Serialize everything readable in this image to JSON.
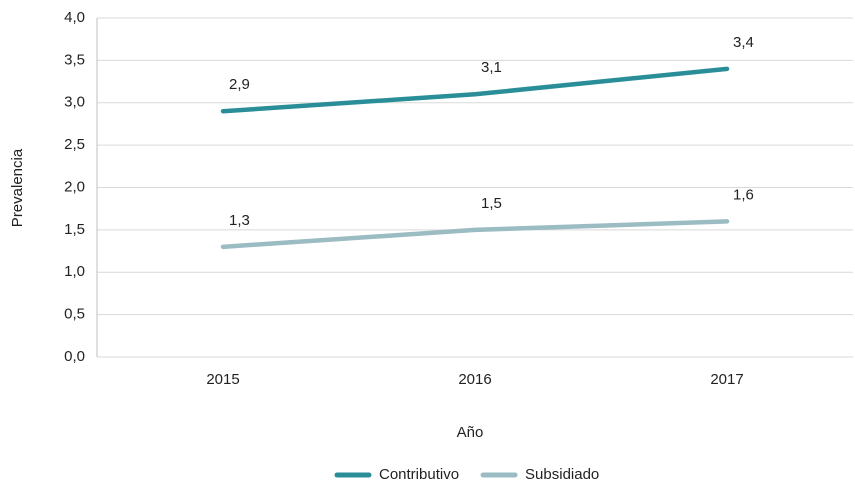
{
  "chart_data": {
    "type": "line",
    "xlabel": "Año",
    "ylabel": "Prevalencia",
    "categories": [
      "2015",
      "2016",
      "2017"
    ],
    "series": [
      {
        "name": "Contributivo",
        "color": "#2a8e98",
        "values": [
          2.9,
          3.1,
          3.4
        ],
        "value_labels": [
          "2,9",
          "3,1",
          "3,4"
        ]
      },
      {
        "name": "Subsidiado",
        "color": "#9bbcc2",
        "values": [
          1.3,
          1.5,
          1.6
        ],
        "value_labels": [
          "1,3",
          "1,5",
          "1,6"
        ]
      }
    ],
    "ylim": [
      0,
      4
    ],
    "yticks": [
      {
        "value": 0,
        "label": "0,0"
      },
      {
        "value": 0.5,
        "label": "0,5"
      },
      {
        "value": 1,
        "label": "1,0"
      },
      {
        "value": 1.5,
        "label": "1,5"
      },
      {
        "value": 2,
        "label": "2,0"
      },
      {
        "value": 2.5,
        "label": "2,5"
      },
      {
        "value": 3,
        "label": "3,0"
      },
      {
        "value": 3.5,
        "label": "3,5"
      },
      {
        "value": 4,
        "label": "4,0"
      }
    ],
    "grid": true,
    "legend": "bottom"
  }
}
